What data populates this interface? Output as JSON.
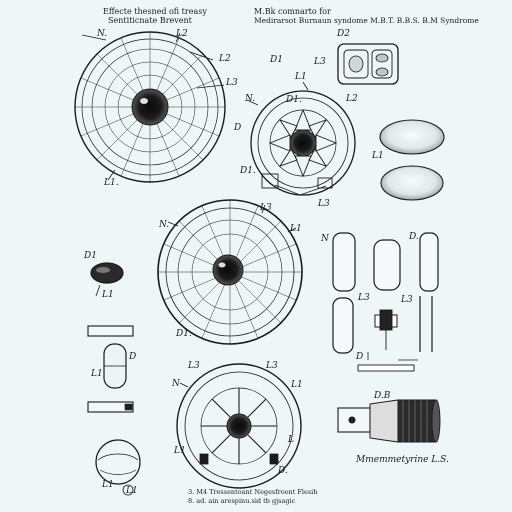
{
  "header": {
    "left_title": "Effecte thesned ofi treasy",
    "left_subtitle": "Sentiticnate Brevent",
    "right_title": "M.Bk comnarto for",
    "right_subtitle": "Medirarsot Burnaun syndome M.B.T. B.B.S. B.M Syndrome"
  },
  "labels": {
    "n1": "N.",
    "l2a": "L2",
    "l2b": "L2",
    "l3a": "L3",
    "l1": "L1.",
    "d1": "D1",
    "l1b": "L1",
    "l3b": "L3",
    "d2": "D2",
    "nb": "N.",
    "db": "D",
    "d1b": "D1.",
    "l2c": "L2",
    "d1c": "D1.",
    "l3c": "L3",
    "l1c": "L1",
    "nc": "N.",
    "l3d": "L3",
    "d1d": "D1.",
    "l1d": "L1",
    "nd": "N",
    "d2b": "D.",
    "l3e": "L3",
    "d1e": "D1",
    "l3f": "L3",
    "d1f": "D",
    "l1e": "L1",
    "d3": "D",
    "l1f": "L1",
    "l3g": "L3",
    "nf": "N",
    "l3h": "L3",
    "l1g": "L1",
    "l1h": "L1",
    "lq": "L",
    "db1": "D.B",
    "d2c": "D.",
    "lc": "L",
    "dg": "D",
    "l1i": "L1",
    "dl": "D.L",
    "l1j": "L1",
    "lb": "L",
    "lz": "L3"
  },
  "captions": {
    "right_caption": "Mmemmetyrine L.S."
  },
  "footer": {
    "line1": "3. M4 Tressentoant Negesfroent Flesih",
    "line2": "8.  ad. ain arespinu.sid tb gjsagic"
  },
  "icons": [
    "round-chart-top-left",
    "wheel-top-center",
    "lens-right",
    "round-chart-center",
    "rounded-cylinders",
    "round-chart-bottom",
    "cylinder-assembly",
    "small-bean",
    "rods",
    "pill"
  ]
}
